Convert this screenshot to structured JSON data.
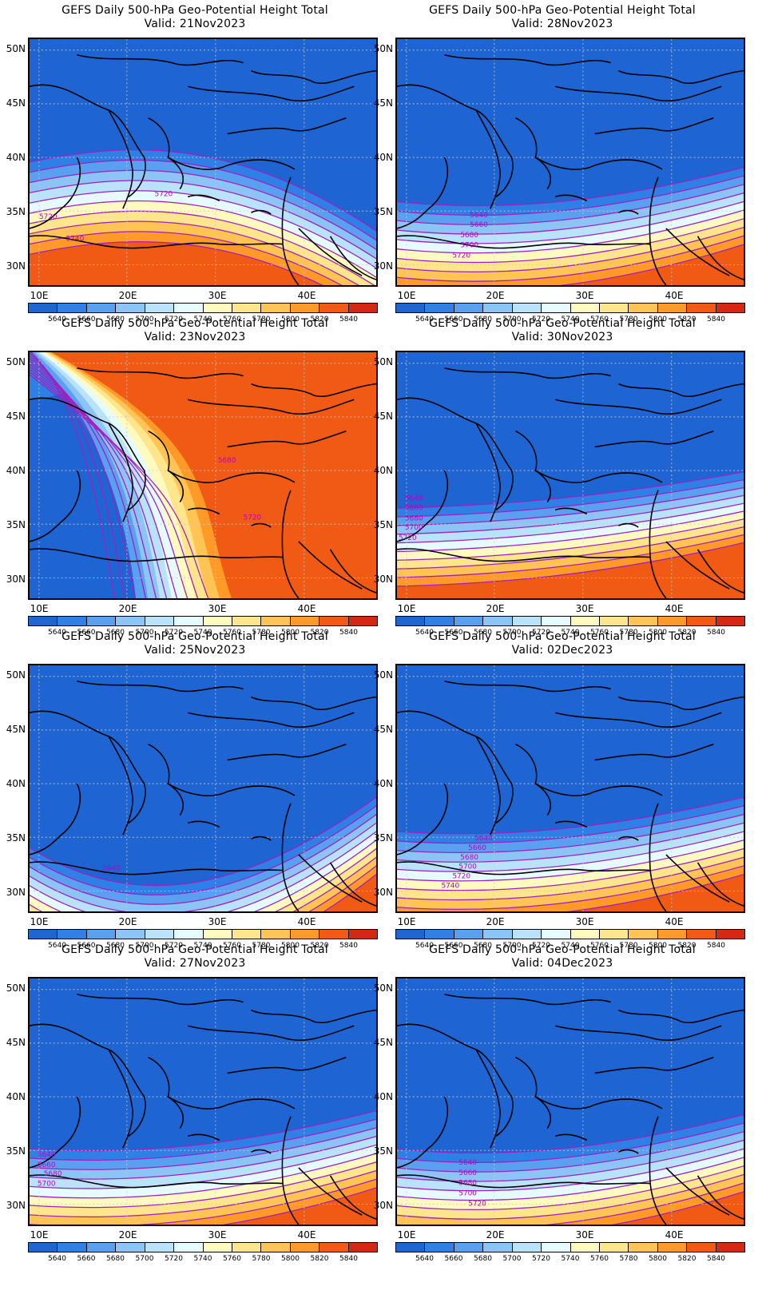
{
  "title_prefix": "GEFS Daily 500-hPa Geo-Potential Height Total",
  "lat_labels": [
    "50N",
    "45N",
    "40N",
    "35N",
    "30N"
  ],
  "lon_labels": [
    "10E",
    "20E",
    "30E",
    "40E"
  ],
  "colorbar": {
    "levels": [
      "5640",
      "5660",
      "5680",
      "5700",
      "5720",
      "5740",
      "5760",
      "5780",
      "5800",
      "5820",
      "5840"
    ],
    "colors": [
      "#1e64d2",
      "#2f80e6",
      "#5aa0f0",
      "#8cc4f5",
      "#b9e3fb",
      "#e6fbff",
      "#fffbc0",
      "#ffe58c",
      "#ffc454",
      "#ff9a28",
      "#f05a14",
      "#d22814"
    ]
  },
  "panels": [
    {
      "valid": "Valid: 21Nov2023",
      "contour_labels": [
        "5720",
        "5720",
        "5740"
      ]
    },
    {
      "valid": "Valid: 28Nov2023",
      "contour_labels": [
        "5640",
        "5660",
        "5680",
        "5700",
        "5720"
      ]
    },
    {
      "valid": "Valid: 23Nov2023",
      "contour_labels": [
        "5680",
        "5720"
      ]
    },
    {
      "valid": "Valid: 30Nov2023",
      "contour_labels": [
        "5640",
        "5660",
        "5680",
        "5700",
        "5720"
      ]
    },
    {
      "valid": "Valid: 25Nov2023",
      "contour_labels": [
        "5640"
      ]
    },
    {
      "valid": "Valid: 02Dec2023",
      "contour_labels": [
        "5640",
        "5660",
        "5680",
        "5700",
        "5720",
        "5740"
      ]
    },
    {
      "valid": "Valid: 27Nov2023",
      "contour_labels": [
        "5640",
        "5660",
        "5680",
        "5700"
      ]
    },
    {
      "valid": "Valid: 04Dec2023",
      "contour_labels": [
        "5640",
        "5660",
        "5680",
        "5700",
        "5720"
      ]
    }
  ]
}
